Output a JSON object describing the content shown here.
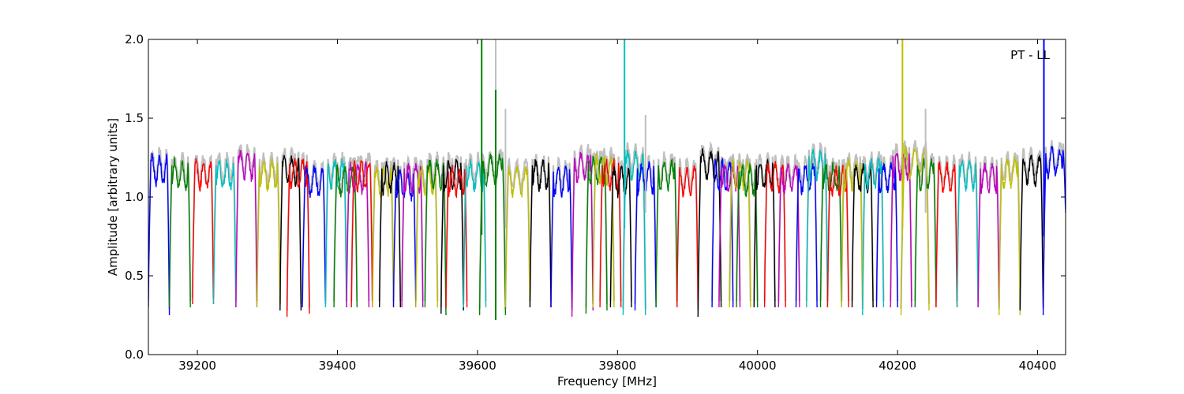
{
  "chart_data": {
    "type": "line",
    "title": "",
    "xlabel": "Frequency [MHz]",
    "ylabel": "Amplitude [arbitrary units]",
    "xlim": [
      39130,
      40440
    ],
    "ylim": [
      0.0,
      2.0
    ],
    "xticks": [
      39200,
      39400,
      39600,
      39800,
      40000,
      40200,
      40400
    ],
    "xtick_labels": [
      "39200",
      "39400",
      "39600",
      "39800",
      "40000",
      "40200",
      "40400"
    ],
    "yticks": [
      0.0,
      0.5,
      1.0,
      1.5,
      2.0
    ],
    "ytick_labels": [
      "0.0",
      "0.5",
      "1.0",
      "1.5",
      "2.0"
    ],
    "annotation": "PT - LL",
    "grid": false,
    "legend": "none",
    "band_width_mhz": 30,
    "color_cycle": [
      "#0000ff",
      "#008000",
      "#ff0000",
      "#00bfbf",
      "#bf00bf",
      "#bfbf00",
      "#000000"
    ],
    "background_color": "#bfbfbf",
    "bands": [
      {
        "start": 39130,
        "end": 39160,
        "color": "#0000ff",
        "left": 0.3,
        "right": 0.25,
        "top": 1.25
      },
      {
        "start": 39160,
        "end": 39190,
        "color": "#008000",
        "left": 0.3,
        "right": 0.3,
        "top": 1.22
      },
      {
        "start": 39193,
        "end": 39223,
        "color": "#ff0000",
        "left": 0.32,
        "right": 0.32,
        "top": 1.22
      },
      {
        "start": 39223,
        "end": 39255,
        "color": "#00bfbf",
        "left": 0.32,
        "right": 0.3,
        "top": 1.22
      },
      {
        "start": 39255,
        "end": 39285,
        "color": "#bf00bf",
        "left": 0.3,
        "right": 0.3,
        "top": 1.28
      },
      {
        "start": 39285,
        "end": 39318,
        "color": "#bfbf00",
        "left": 0.3,
        "right": 0.3,
        "top": 1.22
      },
      {
        "start": 39318,
        "end": 39348,
        "color": "#000000",
        "left": 0.28,
        "right": 0.28,
        "top": 1.25
      },
      {
        "start": 39328,
        "end": 39360,
        "color": "#ff0000",
        "left": 0.24,
        "right": 0.26,
        "top": 1.23
      },
      {
        "start": 39350,
        "end": 39383,
        "color": "#0000ff",
        "left": 0.3,
        "right": 0.32,
        "top": 1.18
      },
      {
        "start": 39383,
        "end": 39413,
        "color": "#00bfbf",
        "left": 0.3,
        "right": 0.3,
        "top": 1.22
      },
      {
        "start": 39395,
        "end": 39428,
        "color": "#008000",
        "left": 0.3,
        "right": 0.3,
        "top": 1.18
      },
      {
        "start": 39413,
        "end": 39445,
        "color": "#bf00bf",
        "left": 0.3,
        "right": 0.3,
        "top": 1.2
      },
      {
        "start": 39420,
        "end": 39450,
        "color": "#ff0000",
        "left": 0.3,
        "right": 0.3,
        "top": 1.22
      },
      {
        "start": 39450,
        "end": 39480,
        "color": "#bfbf00",
        "left": 0.3,
        "right": 0.3,
        "top": 1.18
      },
      {
        "start": 39460,
        "end": 39490,
        "color": "#000000",
        "left": 0.3,
        "right": 0.3,
        "top": 1.2
      },
      {
        "start": 39480,
        "end": 39512,
        "color": "#0000ff",
        "left": 0.3,
        "right": 0.3,
        "top": 1.15
      },
      {
        "start": 39492,
        "end": 39522,
        "color": "#bf00bf",
        "left": 0.3,
        "right": 0.3,
        "top": 1.2
      },
      {
        "start": 39512,
        "end": 39543,
        "color": "#bfbf00",
        "left": 0.3,
        "right": 0.3,
        "top": 1.18
      },
      {
        "start": 39525,
        "end": 39555,
        "color": "#008000",
        "left": 0.3,
        "right": 0.25,
        "top": 1.22
      },
      {
        "start": 39548,
        "end": 39580,
        "color": "#000000",
        "left": 0.26,
        "right": 0.28,
        "top": 1.22
      },
      {
        "start": 39555,
        "end": 39585,
        "color": "#ff0000",
        "left": 0.3,
        "right": 0.3,
        "top": 1.18
      },
      {
        "start": 39580,
        "end": 39612,
        "color": "#00bfbf",
        "left": 0.3,
        "right": 0.3,
        "top": 1.22
      },
      {
        "start": 39603,
        "end": 39640,
        "color": "#008000",
        "left": 0.25,
        "right": 0.25,
        "top": 1.25
      },
      {
        "start": 39640,
        "end": 39675,
        "color": "#bfbf00",
        "left": 0.3,
        "right": 0.3,
        "top": 1.18
      },
      {
        "start": 39675,
        "end": 39705,
        "color": "#000000",
        "left": 0.3,
        "right": 0.3,
        "top": 1.22
      },
      {
        "start": 39705,
        "end": 39735,
        "color": "#0000ff",
        "left": 0.3,
        "right": 0.3,
        "top": 1.18
      },
      {
        "start": 39735,
        "end": 39765,
        "color": "#bf00bf",
        "left": 0.24,
        "right": 0.28,
        "top": 1.27
      },
      {
        "start": 39755,
        "end": 39785,
        "color": "#008000",
        "left": 0.26,
        "right": 0.28,
        "top": 1.25
      },
      {
        "start": 39765,
        "end": 39795,
        "color": "#bfbf00",
        "left": 0.3,
        "right": 0.3,
        "top": 1.25
      },
      {
        "start": 39775,
        "end": 39805,
        "color": "#ff0000",
        "left": 0.3,
        "right": 0.3,
        "top": 1.22
      },
      {
        "start": 39790,
        "end": 39820,
        "color": "#000000",
        "left": 0.3,
        "right": 0.3,
        "top": 1.18
      },
      {
        "start": 39808,
        "end": 39840,
        "color": "#00bfbf",
        "left": 0.25,
        "right": 0.25,
        "top": 1.28
      },
      {
        "start": 39825,
        "end": 39855,
        "color": "#0000ff",
        "left": 0.28,
        "right": 0.3,
        "top": 1.2
      },
      {
        "start": 39855,
        "end": 39885,
        "color": "#008000",
        "left": 0.3,
        "right": 0.3,
        "top": 1.22
      },
      {
        "start": 39885,
        "end": 39915,
        "color": "#ff0000",
        "left": 0.3,
        "right": 0.3,
        "top": 1.18
      },
      {
        "start": 39915,
        "end": 39948,
        "color": "#000000",
        "left": 0.24,
        "right": 0.3,
        "top": 1.28
      },
      {
        "start": 39935,
        "end": 39965,
        "color": "#0000ff",
        "left": 0.3,
        "right": 0.3,
        "top": 1.22
      },
      {
        "start": 39945,
        "end": 39975,
        "color": "#bf00bf",
        "left": 0.3,
        "right": 0.3,
        "top": 1.2
      },
      {
        "start": 39960,
        "end": 39990,
        "color": "#bfbf00",
        "left": 0.3,
        "right": 0.3,
        "top": 1.22
      },
      {
        "start": 39970,
        "end": 40000,
        "color": "#008000",
        "left": 0.3,
        "right": 0.3,
        "top": 1.18
      },
      {
        "start": 39995,
        "end": 40025,
        "color": "#000000",
        "left": 0.3,
        "right": 0.3,
        "top": 1.22
      },
      {
        "start": 40010,
        "end": 40040,
        "color": "#ff0000",
        "left": 0.3,
        "right": 0.3,
        "top": 1.2
      },
      {
        "start": 40030,
        "end": 40060,
        "color": "#bf00bf",
        "left": 0.3,
        "right": 0.3,
        "top": 1.2
      },
      {
        "start": 40055,
        "end": 40085,
        "color": "#0000ff",
        "left": 0.3,
        "right": 0.3,
        "top": 1.2
      },
      {
        "start": 40070,
        "end": 40100,
        "color": "#00bfbf",
        "left": 0.3,
        "right": 0.3,
        "top": 1.28
      },
      {
        "start": 40090,
        "end": 40120,
        "color": "#008000",
        "left": 0.3,
        "right": 0.3,
        "top": 1.2
      },
      {
        "start": 40100,
        "end": 40130,
        "color": "#ff0000",
        "left": 0.3,
        "right": 0.3,
        "top": 1.18
      },
      {
        "start": 40120,
        "end": 40150,
        "color": "#bfbf00",
        "left": 0.3,
        "right": 0.3,
        "top": 1.22
      },
      {
        "start": 40135,
        "end": 40165,
        "color": "#000000",
        "left": 0.3,
        "right": 0.3,
        "top": 1.2
      },
      {
        "start": 40150,
        "end": 40180,
        "color": "#00bfbf",
        "left": 0.25,
        "right": 0.3,
        "top": 1.23
      },
      {
        "start": 40170,
        "end": 40200,
        "color": "#0000ff",
        "left": 0.3,
        "right": 0.3,
        "top": 1.2
      },
      {
        "start": 40190,
        "end": 40220,
        "color": "#bf00bf",
        "left": 0.3,
        "right": 0.3,
        "top": 1.28
      },
      {
        "start": 40205,
        "end": 40245,
        "color": "#bfbf00",
        "left": 0.25,
        "right": 0.28,
        "top": 1.3
      },
      {
        "start": 40225,
        "end": 40255,
        "color": "#008000",
        "left": 0.3,
        "right": 0.3,
        "top": 1.22
      },
      {
        "start": 40255,
        "end": 40285,
        "color": "#ff0000",
        "left": 0.3,
        "right": 0.3,
        "top": 1.2
      },
      {
        "start": 40285,
        "end": 40315,
        "color": "#00bfbf",
        "left": 0.3,
        "right": 0.3,
        "top": 1.22
      },
      {
        "start": 40315,
        "end": 40345,
        "color": "#bf00bf",
        "left": 0.3,
        "right": 0.3,
        "top": 1.2
      },
      {
        "start": 40345,
        "end": 40375,
        "color": "#bfbf00",
        "left": 0.25,
        "right": 0.25,
        "top": 1.23
      },
      {
        "start": 40375,
        "end": 40408,
        "color": "#000000",
        "left": 0.28,
        "right": 0.3,
        "top": 1.25
      },
      {
        "start": 40408,
        "end": 40440,
        "color": "#0000ff",
        "left": 0.25,
        "right": 0.9,
        "top": 1.3
      }
    ],
    "spikes": [
      {
        "x": 39606,
        "y0": 0.76,
        "y1": 2.0,
        "color": "#008000"
      },
      {
        "x": 39626,
        "y0": 0.3,
        "y1": 2.0,
        "color": "#bfbfbf"
      },
      {
        "x": 39626,
        "y0": 0.22,
        "y1": 1.68,
        "color": "#008000"
      },
      {
        "x": 39640,
        "y0": 0.8,
        "y1": 1.56,
        "color": "#bfbfbf"
      },
      {
        "x": 39810,
        "y0": 0.8,
        "y1": 2.0,
        "color": "#00bfbf"
      },
      {
        "x": 39840,
        "y0": 0.9,
        "y1": 1.52,
        "color": "#bfbfbf"
      },
      {
        "x": 40207,
        "y0": 0.8,
        "y1": 2.0,
        "color": "#bfbf00"
      },
      {
        "x": 40240,
        "y0": 0.9,
        "y1": 1.56,
        "color": "#bfbfbf"
      },
      {
        "x": 40409,
        "y0": 0.75,
        "y1": 2.0,
        "color": "#0000ff"
      }
    ]
  }
}
